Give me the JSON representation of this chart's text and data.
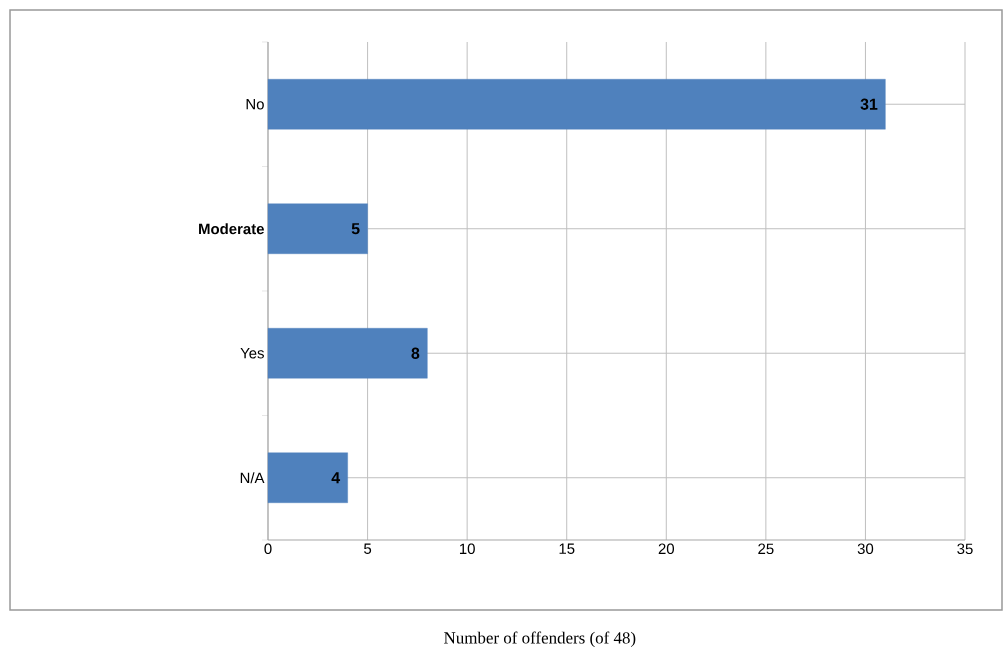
{
  "chart_data": {
    "type": "bar",
    "orientation": "horizontal",
    "categories": [
      "No",
      "**Moderate**",
      "Yes",
      "N/A"
    ],
    "values": [
      31,
      5,
      8,
      4
    ],
    "color": "#4f81bd",
    "xlim": [
      0,
      35
    ],
    "xticks": [
      0,
      5,
      10,
      15,
      20,
      25,
      30,
      35
    ],
    "grid": true,
    "data_labels": true,
    "xlabel": "Number of offenders (of 48)"
  }
}
